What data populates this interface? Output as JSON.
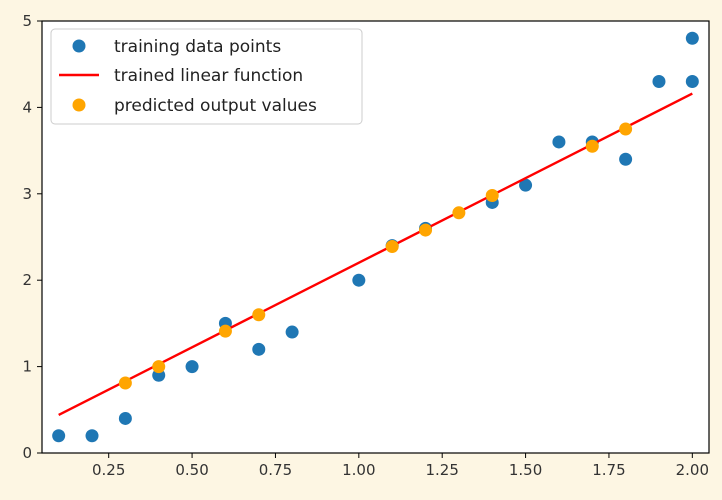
{
  "chart_data": {
    "type": "scatter",
    "xlim": [
      0.05,
      2.05
    ],
    "ylim": [
      0,
      5
    ],
    "x_ticks": [
      0.25,
      0.5,
      0.75,
      1.0,
      1.25,
      1.5,
      1.75,
      2.0
    ],
    "x_tick_labels": [
      "0.25",
      "0.50",
      "0.75",
      "1.00",
      "1.25",
      "1.50",
      "1.75",
      "2.00"
    ],
    "y_ticks": [
      0,
      1,
      2,
      3,
      4,
      5
    ],
    "y_tick_labels": [
      "0",
      "1",
      "2",
      "3",
      "4",
      "5"
    ],
    "grid": false,
    "legend_position": "top-left",
    "series": [
      {
        "name": "training data points",
        "kind": "scatter",
        "color": "#1f77b4",
        "points": [
          [
            0.1,
            0.2
          ],
          [
            0.2,
            0.2
          ],
          [
            0.3,
            0.4
          ],
          [
            0.4,
            0.9
          ],
          [
            0.5,
            1.0
          ],
          [
            0.6,
            1.5
          ],
          [
            0.7,
            1.2
          ],
          [
            0.8,
            1.4
          ],
          [
            1.0,
            2.0
          ],
          [
            1.1,
            2.4
          ],
          [
            1.2,
            2.6
          ],
          [
            1.4,
            2.9
          ],
          [
            1.5,
            3.1
          ],
          [
            1.6,
            3.6
          ],
          [
            1.7,
            3.6
          ],
          [
            1.8,
            3.4
          ],
          [
            1.9,
            4.3
          ],
          [
            2.0,
            4.3
          ],
          [
            2.0,
            4.8
          ]
        ]
      },
      {
        "name": "trained linear function",
        "kind": "line",
        "color": "#ff0000",
        "points": [
          [
            0.1,
            0.44
          ],
          [
            2.0,
            4.16
          ]
        ]
      },
      {
        "name": "predicted output values",
        "kind": "scatter",
        "color": "#ffa500",
        "points": [
          [
            0.3,
            0.81
          ],
          [
            0.4,
            1.0
          ],
          [
            0.6,
            1.41
          ],
          [
            0.7,
            1.6
          ],
          [
            1.1,
            2.39
          ],
          [
            1.2,
            2.58
          ],
          [
            1.3,
            2.78
          ],
          [
            1.4,
            2.98
          ],
          [
            1.7,
            3.55
          ],
          [
            1.8,
            3.75
          ]
        ]
      }
    ]
  }
}
